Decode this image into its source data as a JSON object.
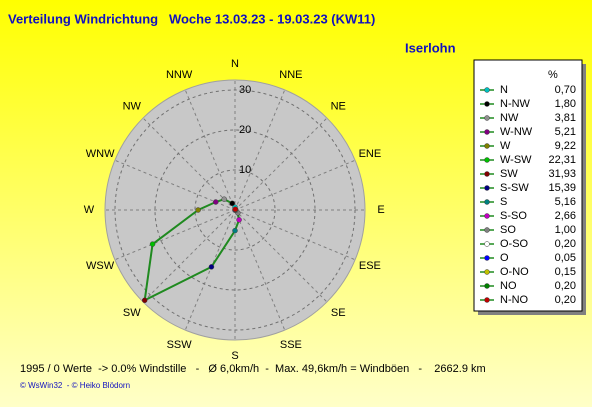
{
  "chart_data": {
    "type": "radar",
    "title": "Verteilung Windrichtung   Woche 13.03.23 - 19.03.23 (KW11)",
    "subtitle": "Iserlohn",
    "categories": [
      "N",
      "NNE",
      "NE",
      "ENE",
      "E",
      "ESE",
      "SE",
      "SSE",
      "S",
      "SSW",
      "SW",
      "WSW",
      "W",
      "WNW",
      "NW",
      "NNW"
    ],
    "rlim": [
      0,
      32.5
    ],
    "rticks": [
      10,
      20,
      30
    ],
    "grid": true,
    "line_color": "#1f8a1f",
    "legend_title": "%",
    "point_names": [
      "N",
      "N-NW",
      "NW",
      "W-NW",
      "W",
      "W-SW",
      "SW",
      "S-SW",
      "S",
      "S-SO",
      "SO",
      "O-SO",
      "O",
      "O-NO",
      "NO",
      "N-NO"
    ],
    "point_colors": [
      "#00c0c0",
      "#000000",
      "#909090",
      "#800080",
      "#808000",
      "#00c000",
      "#800000",
      "#000080",
      "#008080",
      "#c000c0",
      "#808080",
      "#ffffff",
      "#0000ff",
      "#c0c000",
      "#008000",
      "#c00000"
    ],
    "values": [
      0.7,
      1.8,
      3.81,
      5.21,
      9.22,
      22.31,
      31.93,
      15.39,
      5.16,
      2.66,
      1.0,
      0.2,
      0.05,
      0.15,
      0.2,
      0.2
    ],
    "value_labels": [
      "0,70",
      "1,80",
      "3,81",
      "5,21",
      "9,22",
      "22,31",
      "31,93",
      "15,39",
      "5,16",
      "2,66",
      "1,00",
      "0,20",
      "0,05",
      "0,15",
      "0,20",
      "0,20"
    ],
    "footer": "1995 / 0 Werte  -> 0.0% Windstille   -   Ø 6,0km/h  -  Max. 49,6km/h = Windböen   -    2662.9 km",
    "credit": "© WsWin32  - © Heiko Blödorn"
  }
}
